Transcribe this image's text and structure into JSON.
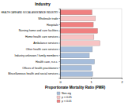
{
  "chart_data": {
    "type": "bar",
    "orientation": "horizontal",
    "y_label": "Industry",
    "x_label": "Proportionate Mortality Ratio (PMR)",
    "categories": [
      "HEALTH CARE AND SOCIAL ASSISTANCE INDUSTRY",
      "Wholesale trade",
      "Hospitals",
      "Nursing home and care facilities",
      "Home health care services",
      "Ambulance services",
      "Other health care services",
      "Industry unknown / family members",
      "Health care, n.e.c.",
      "Offices of health practitioners",
      "Miscellaneous health and social services"
    ],
    "series": [
      {
        "name": "Non-sig",
        "color": "#a6bddb",
        "values": [
          null,
          null,
          null,
          null,
          null,
          null,
          1.05,
          0.95,
          1.12,
          1.02,
          1.06
        ]
      },
      {
        "name": "p < 0.05",
        "color": "#f7c4c4",
        "values": [
          null,
          1.15,
          null,
          null,
          1.1,
          1.3,
          null,
          null,
          null,
          null,
          null
        ]
      },
      {
        "name": "p < 0.01",
        "color": "#f08080",
        "values": [
          1.04,
          null,
          1.08,
          1.22,
          null,
          null,
          null,
          null,
          null,
          null,
          null
        ]
      }
    ],
    "xlim": [
      0,
      2
    ],
    "xticks": [
      0,
      1,
      2
    ],
    "legend": "bottom-left"
  }
}
